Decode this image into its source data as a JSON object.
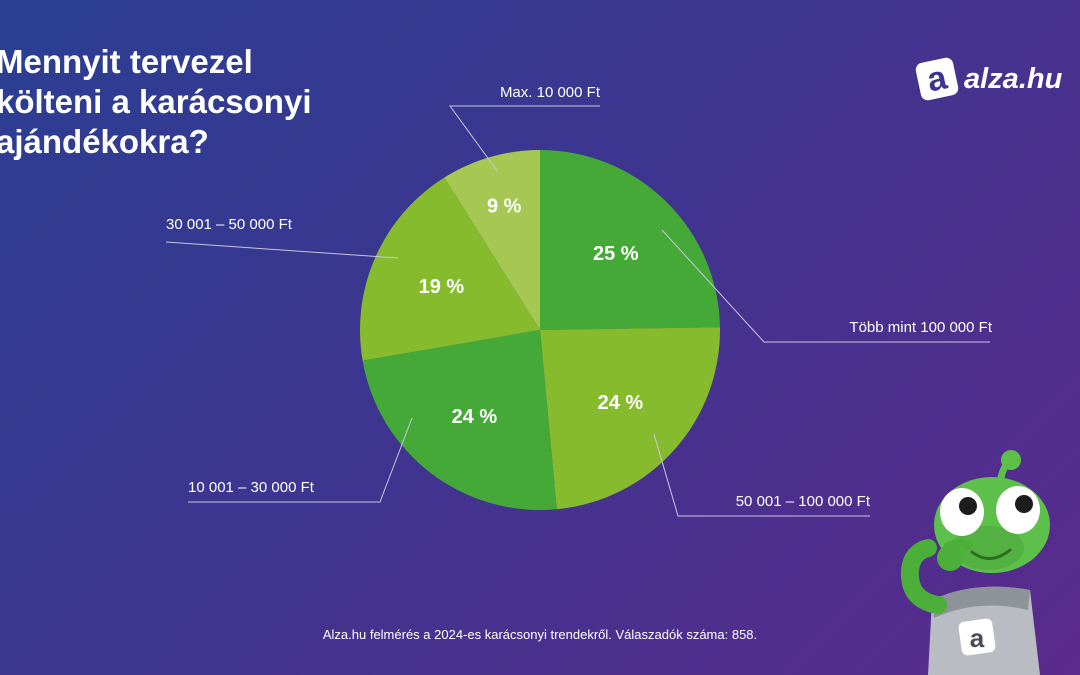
{
  "title_lines": [
    "Mennyit tervezel",
    "költeni a karácsonyi",
    "ajándékokra?"
  ],
  "logo": {
    "text": "alza.hu",
    "mark": "a",
    "icon": "alza-logo-icon"
  },
  "footnote": "Alza.hu felmérés a 2024-es karácsonyi trendekről. Válaszadók száma: 858.",
  "mascot": {
    "icon": "alien-mascot-icon",
    "badge": "a"
  },
  "colors": {
    "dark_green": "#45a937",
    "mid_green": "#86bb2e",
    "light_green": "#a6c751",
    "leader_line": "#c9c6e0"
  },
  "chart_data": {
    "type": "pie",
    "title": "Mennyit tervezel költeni a karácsonyi ajándékokra?",
    "start_angle": "12 o'clock",
    "direction": "clockwise",
    "slices": [
      {
        "label": "Több mint 100 000 Ft",
        "value": 25,
        "display": "25 %",
        "color": "#45a937"
      },
      {
        "label": "50 001 – 100 000 Ft",
        "value": 24,
        "display": "24 %",
        "color": "#86bb2e"
      },
      {
        "label": "10 001 – 30 000 Ft",
        "value": 24,
        "display": "24 %",
        "color": "#45a937"
      },
      {
        "label": "30 001 – 50 000 Ft",
        "value": 19,
        "display": "19 %",
        "color": "#86bb2e"
      },
      {
        "label": "Max. 10 000 Ft",
        "value": 9,
        "display": "9 %",
        "color": "#a6c751"
      }
    ]
  }
}
